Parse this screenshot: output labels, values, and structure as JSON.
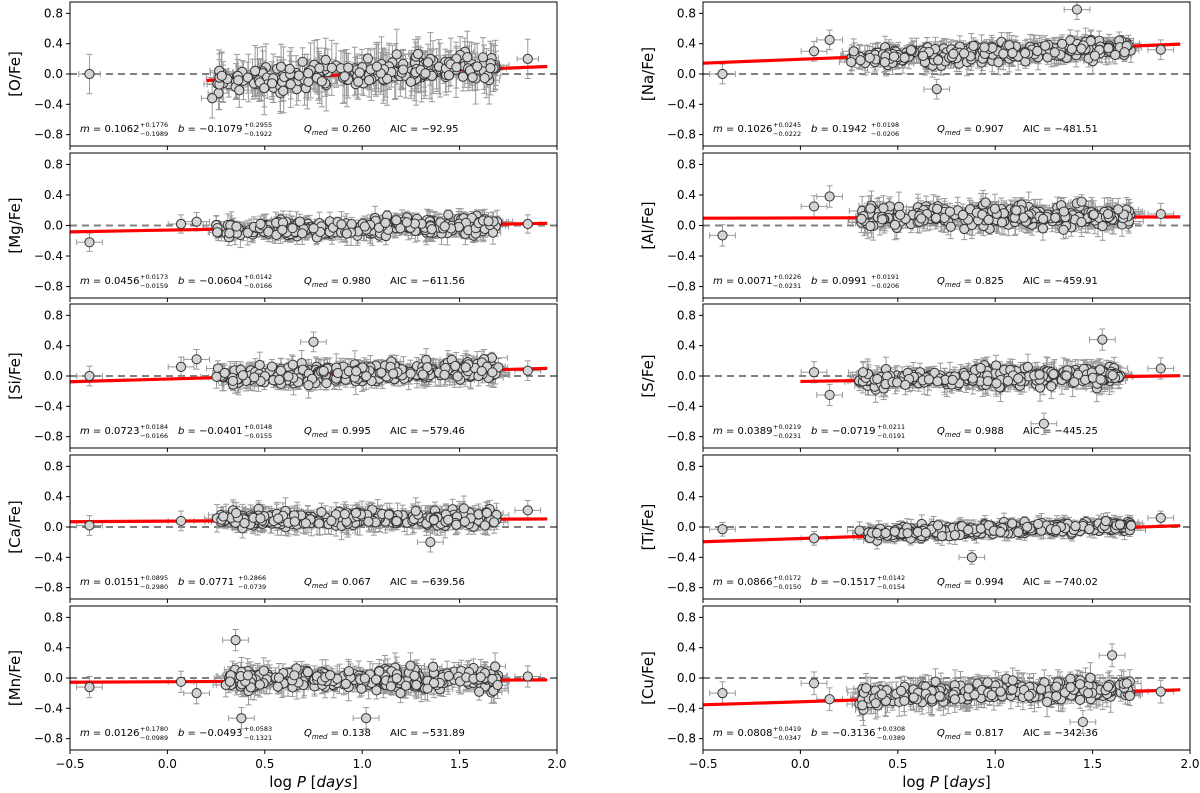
{
  "chart_data": {
    "type": "scatter",
    "grid_layout": "5 rows x 2 columns",
    "xlabel": "log P [days]",
    "x_ticks": [
      "−0.5",
      "0.0",
      "0.5",
      "1.0",
      "1.5",
      "2.0"
    ],
    "xlim": [
      -0.5,
      2.0
    ],
    "ylim": [
      -0.95,
      0.95
    ],
    "y_ticks": [
      "−0.8",
      "−0.4",
      "0.0",
      "0.4",
      "0.8"
    ],
    "reference_line_y": 0.0,
    "colors": {
      "fit": "#ff0000",
      "reference": "#808080",
      "marker_fill": "#d3d3d3",
      "marker_edge": "#333333",
      "errorbar": "#999999"
    },
    "panels": [
      {
        "element": "[O/Fe]",
        "ylabel": "[O/Fe]",
        "fit": {
          "m": 0.1062,
          "b": -0.1079,
          "x_range": [
            0.2,
            1.95
          ]
        },
        "stats": {
          "m": "0.1062",
          "m_up": "+0.1776",
          "m_dn": "−0.1989",
          "b": "−0.1079",
          "b_up": "+0.2955",
          "b_dn": "−0.1922",
          "qmed": "0.260",
          "aic": "−92.95"
        },
        "scatter": {
          "n": 220,
          "xmin": 0.25,
          "xmax": 1.7,
          "mean": 0.0,
          "sd": 0.17,
          "xerr": 0.05,
          "yerr": 0.26
        },
        "outliers": [
          {
            "x": -0.4,
            "y": 0.0
          },
          {
            "x": 1.85,
            "y": 0.2
          },
          {
            "x": 1.62,
            "y": 0.22
          },
          {
            "x": 0.23,
            "y": -0.32
          }
        ]
      },
      {
        "element": "[Na/Fe]",
        "ylabel": "[Na/Fe]",
        "fit": {
          "m": 0.1026,
          "b": 0.1942,
          "x_range": [
            -0.5,
            1.95
          ]
        },
        "stats": {
          "m": "0.1026",
          "m_up": "+0.0245",
          "m_dn": "−0.0222",
          "b": "0.1942",
          "b_up": "+0.0198",
          "b_dn": "−0.0206",
          "qmed": "0.907",
          "aic": "−481.51"
        },
        "scatter": {
          "n": 300,
          "xmin": 0.25,
          "xmax": 1.7,
          "mean": 0.27,
          "sd": 0.1,
          "xerr": 0.06,
          "yerr": 0.13
        },
        "outliers": [
          {
            "x": -0.4,
            "y": 0.0
          },
          {
            "x": 0.07,
            "y": 0.3
          },
          {
            "x": 0.15,
            "y": 0.45
          },
          {
            "x": 0.7,
            "y": -0.2
          },
          {
            "x": 1.42,
            "y": 0.85
          },
          {
            "x": 1.85,
            "y": 0.32
          }
        ]
      },
      {
        "element": "[Mg/Fe]",
        "ylabel": "[Mg/Fe]",
        "fit": {
          "m": 0.0456,
          "b": -0.0604,
          "x_range": [
            -0.5,
            1.95
          ]
        },
        "stats": {
          "m": "0.0456",
          "m_up": "+0.0173",
          "m_dn": "−0.0159",
          "b": "−0.0604",
          "b_up": "+0.0142",
          "b_dn": "−0.0166",
          "qmed": "0.980",
          "aic": "−611.56"
        },
        "scatter": {
          "n": 300,
          "xmin": 0.25,
          "xmax": 1.7,
          "mean": -0.03,
          "sd": 0.09,
          "xerr": 0.06,
          "yerr": 0.12
        },
        "outliers": [
          {
            "x": -0.4,
            "y": -0.22
          },
          {
            "x": 0.07,
            "y": 0.02
          },
          {
            "x": 0.15,
            "y": 0.05
          },
          {
            "x": 1.85,
            "y": 0.02
          }
        ]
      },
      {
        "element": "[Al/Fe]",
        "ylabel": "[Al/Fe]",
        "fit": {
          "m": 0.0071,
          "b": 0.0991,
          "x_range": [
            -0.5,
            1.95
          ]
        },
        "stats": {
          "m": "0.0071",
          "m_up": "+0.0226",
          "m_dn": "−0.0231",
          "b": "0.0991",
          "b_up": "+0.0191",
          "b_dn": "−0.0206",
          "qmed": "0.825",
          "aic": "−459.91"
        },
        "scatter": {
          "n": 290,
          "xmin": 0.3,
          "xmax": 1.7,
          "mean": 0.12,
          "sd": 0.11,
          "xerr": 0.06,
          "yerr": 0.14
        },
        "outliers": [
          {
            "x": -0.4,
            "y": -0.13
          },
          {
            "x": 0.07,
            "y": 0.25
          },
          {
            "x": 0.15,
            "y": 0.38
          },
          {
            "x": 1.85,
            "y": 0.15
          }
        ]
      },
      {
        "element": "[Si/Fe]",
        "ylabel": "[Si/Fe]",
        "fit": {
          "m": 0.0723,
          "b": -0.0401,
          "x_range": [
            -0.5,
            1.95
          ]
        },
        "stats": {
          "m": "0.0723",
          "m_up": "+0.0184",
          "m_dn": "−0.0166",
          "b": "−0.0401",
          "b_up": "+0.0148",
          "b_dn": "−0.0155",
          "qmed": "0.995",
          "aic": "−579.46"
        },
        "scatter": {
          "n": 300,
          "xmin": 0.25,
          "xmax": 1.7,
          "mean": 0.03,
          "sd": 0.09,
          "xerr": 0.06,
          "yerr": 0.13
        },
        "outliers": [
          {
            "x": -0.4,
            "y": 0.0
          },
          {
            "x": 0.07,
            "y": 0.12
          },
          {
            "x": 0.15,
            "y": 0.22
          },
          {
            "x": 0.75,
            "y": 0.45
          },
          {
            "x": 1.85,
            "y": 0.07
          }
        ]
      },
      {
        "element": "[S/Fe]",
        "ylabel": "[S/Fe]",
        "fit": {
          "m": 0.0389,
          "b": -0.0719,
          "x_range": [
            0.0,
            1.95
          ]
        },
        "stats": {
          "m": "0.0389",
          "m_up": "+0.0219",
          "m_dn": "−0.0231",
          "b": "−0.0719",
          "b_up": "+0.0211",
          "b_dn": "−0.0191",
          "qmed": "0.988",
          "aic": "−445.25"
        },
        "scatter": {
          "n": 260,
          "xmin": 0.3,
          "xmax": 1.65,
          "mean": -0.02,
          "sd": 0.1,
          "xerr": 0.06,
          "yerr": 0.14
        },
        "outliers": [
          {
            "x": 0.07,
            "y": 0.05
          },
          {
            "x": 0.15,
            "y": -0.25
          },
          {
            "x": 1.25,
            "y": -0.63
          },
          {
            "x": 1.55,
            "y": 0.48
          },
          {
            "x": 1.85,
            "y": 0.1
          }
        ]
      },
      {
        "element": "[Ca/Fe]",
        "ylabel": "[Ca/Fe]",
        "fit": {
          "m": 0.0151,
          "b": 0.0771,
          "x_range": [
            -0.5,
            1.95
          ]
        },
        "stats": {
          "m": "0.0151",
          "m_up": "+0.0895",
          "m_dn": "−0.2980",
          "b": "0.0771",
          "b_up": "+0.2866",
          "b_dn": "−0.0739",
          "qmed": "0.067",
          "aic": "−639.56"
        },
        "scatter": {
          "n": 290,
          "xmin": 0.25,
          "xmax": 1.7,
          "mean": 0.11,
          "sd": 0.09,
          "xerr": 0.06,
          "yerr": 0.13
        },
        "outliers": [
          {
            "x": -0.4,
            "y": 0.02
          },
          {
            "x": 0.07,
            "y": 0.08
          },
          {
            "x": 1.35,
            "y": -0.2
          },
          {
            "x": 1.85,
            "y": 0.22
          }
        ]
      },
      {
        "element": "[Ti/Fe]",
        "ylabel": "[Ti/Fe]",
        "fit": {
          "m": 0.0866,
          "b": -0.1517,
          "x_range": [
            -0.5,
            1.95
          ]
        },
        "stats": {
          "m": "0.0866",
          "m_up": "+0.0172",
          "m_dn": "−0.0150",
          "b": "−0.1517",
          "b_up": "+0.0142",
          "b_dn": "−0.0154",
          "qmed": "0.994",
          "aic": "−740.02"
        },
        "scatter": {
          "n": 300,
          "xmin": 0.3,
          "xmax": 1.7,
          "mean": -0.04,
          "sd": 0.06,
          "xerr": 0.06,
          "yerr": 0.09
        },
        "outliers": [
          {
            "x": -0.4,
            "y": -0.03
          },
          {
            "x": 0.07,
            "y": -0.15
          },
          {
            "x": 0.88,
            "y": -0.4
          },
          {
            "x": 1.85,
            "y": 0.12
          }
        ]
      },
      {
        "element": "[Mn/Fe]",
        "ylabel": "[Mn/Fe]",
        "fit": {
          "m": 0.0126,
          "b": -0.0493,
          "x_range": [
            -0.5,
            1.95
          ]
        },
        "stats": {
          "m": "0.0126",
          "m_up": "+0.1780",
          "m_dn": "−0.0989",
          "b": "−0.0493",
          "b_up": "+0.0583",
          "b_dn": "−0.1321",
          "qmed": "0.138",
          "aic": "−531.89"
        },
        "scatter": {
          "n": 290,
          "xmin": 0.3,
          "xmax": 1.7,
          "mean": -0.02,
          "sd": 0.11,
          "xerr": 0.06,
          "yerr": 0.14
        },
        "outliers": [
          {
            "x": -0.4,
            "y": -0.12
          },
          {
            "x": 0.07,
            "y": -0.05
          },
          {
            "x": 0.15,
            "y": -0.2
          },
          {
            "x": 0.38,
            "y": -0.53
          },
          {
            "x": 0.35,
            "y": 0.5
          },
          {
            "x": 1.02,
            "y": -0.53
          },
          {
            "x": 1.85,
            "y": 0.02
          }
        ]
      },
      {
        "element": "[Cu/Fe]",
        "ylabel": "[Cu/Fe]",
        "fit": {
          "m": 0.0808,
          "b": -0.3136,
          "x_range": [
            -0.5,
            1.95
          ]
        },
        "stats": {
          "m": "0.0808",
          "m_up": "+0.0419",
          "m_dn": "−0.0347",
          "b": "−0.3136",
          "b_up": "+0.0308",
          "b_dn": "−0.0389",
          "qmed": "0.817",
          "aic": "−342.36"
        },
        "scatter": {
          "n": 260,
          "xmin": 0.3,
          "xmax": 1.7,
          "mean": -0.2,
          "sd": 0.11,
          "xerr": 0.06,
          "yerr": 0.15
        },
        "outliers": [
          {
            "x": -0.4,
            "y": -0.2
          },
          {
            "x": 0.07,
            "y": -0.07
          },
          {
            "x": 0.15,
            "y": -0.28
          },
          {
            "x": 1.45,
            "y": -0.58
          },
          {
            "x": 1.6,
            "y": 0.3
          },
          {
            "x": 1.85,
            "y": -0.18
          }
        ]
      }
    ]
  }
}
